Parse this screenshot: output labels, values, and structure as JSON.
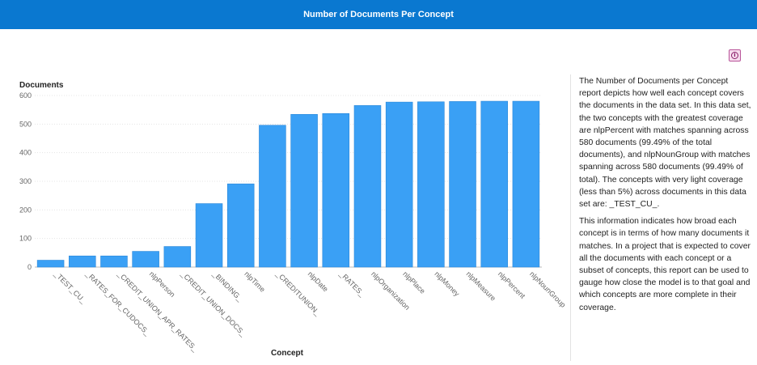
{
  "header": {
    "title": "Number of Documents Per Concept"
  },
  "info_button": {
    "icon": "info-icon",
    "glyph": "i",
    "color": "#b9559a"
  },
  "description": {
    "p1": "The Number of Documents per Concept report depicts how well each concept covers the documents in the data set. In this data set, the two concepts with the greatest coverage are nlpPercent with matches spanning across 580 documents (99.49% of the total documents), and nlpNounGroup with matches spanning across 580 documents (99.49% of total). The concepts with very light coverage (less than 5%) across documents in this data set are: _TEST_CU_.",
    "p2": "This information indicates how broad each concept is in terms of how many documents it matches. In a project that is expected to cover all the documents with each concept or a subset of concepts, this report can be used to gauge how close the model is to that goal and which concepts are more complete in their coverage."
  },
  "chart_data": {
    "type": "bar",
    "ylabel": "Documents",
    "xlabel": "Concept",
    "ylim": [
      0,
      600
    ],
    "yticks": [
      0,
      100,
      200,
      300,
      400,
      500,
      600
    ],
    "grid": true,
    "bar_color": "#3aa0f5",
    "categories": [
      "_TEST_CU_",
      "_RATES_FOR_CUDOCS_",
      "_CREDIT_UNION_APR_RATES_",
      "nlpPerson",
      "_CREDIT_UNION_DOCS_",
      "_BINDING_",
      "nlpTime",
      "_CREDITUNION_",
      "nlpDate",
      "_RATES_",
      "nlpOrganization",
      "nlpPlace",
      "nlpMoney",
      "nlpMeasure",
      "nlpPercent",
      "nlpNounGroup"
    ],
    "values": [
      24,
      39,
      39,
      55,
      72,
      222,
      291,
      496,
      534,
      537,
      565,
      577,
      578,
      579,
      580,
      580
    ]
  }
}
